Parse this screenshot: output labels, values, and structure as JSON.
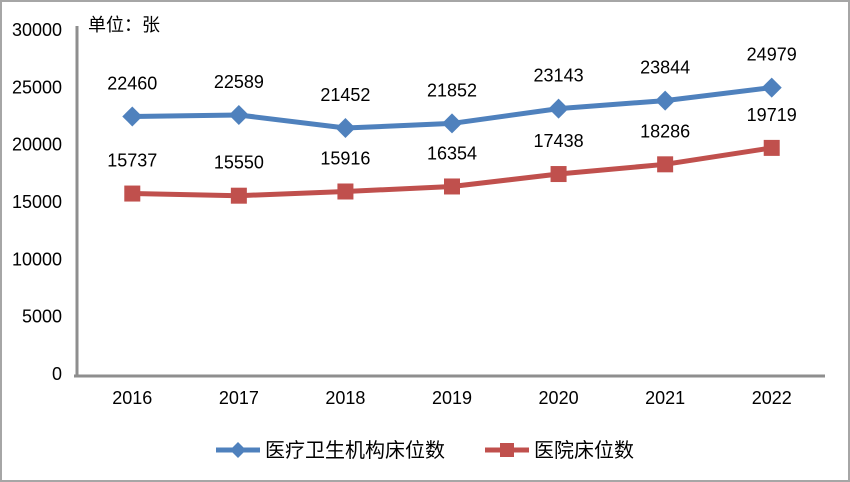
{
  "frame": {
    "background_color": "#ffffff",
    "border_color": "#a6a6a6"
  },
  "chart_data": {
    "type": "line",
    "title": "",
    "unit_label": "单位：张",
    "categories": [
      "2016",
      "2017",
      "2018",
      "2019",
      "2020",
      "2021",
      "2022"
    ],
    "series": [
      {
        "name": "医疗卫生机构床位数",
        "color": "#4f81bd",
        "marker": "diamond",
        "values": [
          22460,
          22589,
          21452,
          21852,
          23143,
          23844,
          24979
        ]
      },
      {
        "name": "医院床位数",
        "color": "#c0504d",
        "marker": "square",
        "values": [
          15737,
          15550,
          15916,
          16354,
          17438,
          18286,
          19719
        ]
      }
    ],
    "ylim": [
      0,
      30000
    ],
    "yticks": [
      0,
      5000,
      10000,
      15000,
      20000,
      25000,
      30000
    ],
    "grid": false,
    "data_labels": true,
    "legend_position": "bottom",
    "axis_color": "#8e8e8e",
    "text_color": "#000000"
  }
}
